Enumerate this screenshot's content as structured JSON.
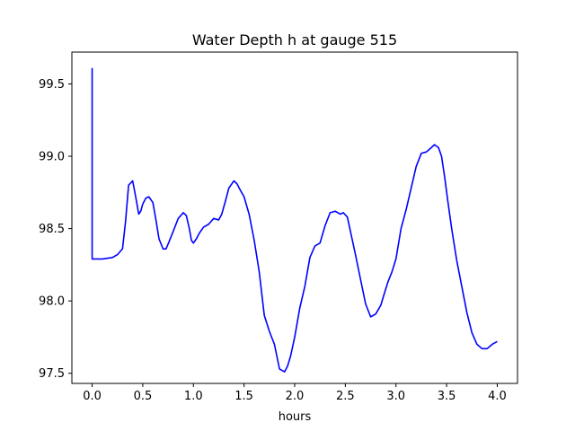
{
  "chart_data": {
    "type": "line",
    "title": "Water Depth h at gauge 515",
    "xlabel": "hours",
    "ylabel": "",
    "xlim": [
      -0.2,
      4.2
    ],
    "ylim": [
      97.43,
      99.72
    ],
    "xticks": [
      {
        "value": 0.0,
        "label": "0.0"
      },
      {
        "value": 0.5,
        "label": "0.5"
      },
      {
        "value": 1.0,
        "label": "1.0"
      },
      {
        "value": 1.5,
        "label": "1.5"
      },
      {
        "value": 2.0,
        "label": "2.0"
      },
      {
        "value": 2.5,
        "label": "2.5"
      },
      {
        "value": 3.0,
        "label": "3.0"
      },
      {
        "value": 3.5,
        "label": "3.5"
      },
      {
        "value": 4.0,
        "label": "4.0"
      }
    ],
    "yticks": [
      {
        "value": 97.5,
        "label": "97.5"
      },
      {
        "value": 98.0,
        "label": "98.0"
      },
      {
        "value": 98.5,
        "label": "98.5"
      },
      {
        "value": 99.0,
        "label": "99.0"
      },
      {
        "value": 99.5,
        "label": "99.5"
      }
    ],
    "grid": false,
    "series": [
      {
        "color": "#0000ff",
        "x": [
          0.0,
          0.0,
          0.0,
          0.1,
          0.2,
          0.25,
          0.3,
          0.33,
          0.36,
          0.4,
          0.43,
          0.46,
          0.48,
          0.5,
          0.53,
          0.56,
          0.6,
          0.63,
          0.66,
          0.7,
          0.73,
          0.76,
          0.8,
          0.85,
          0.9,
          0.93,
          0.96,
          0.98,
          1.0,
          1.03,
          1.06,
          1.1,
          1.15,
          1.2,
          1.25,
          1.28,
          1.32,
          1.35,
          1.4,
          1.43,
          1.46,
          1.5,
          1.55,
          1.6,
          1.65,
          1.7,
          1.75,
          1.8,
          1.85,
          1.9,
          1.93,
          1.96,
          2.0,
          2.05,
          2.1,
          2.15,
          2.2,
          2.25,
          2.3,
          2.35,
          2.4,
          2.45,
          2.48,
          2.52,
          2.56,
          2.6,
          2.65,
          2.7,
          2.75,
          2.8,
          2.85,
          2.88,
          2.92,
          2.96,
          3.0,
          3.05,
          3.1,
          3.15,
          3.2,
          3.25,
          3.3,
          3.35,
          3.38,
          3.42,
          3.45,
          3.48,
          3.51,
          3.55,
          3.6,
          3.65,
          3.7,
          3.75,
          3.8,
          3.85,
          3.9,
          3.95,
          4.0
        ],
        "y": [
          99.61,
          98.8,
          98.29,
          98.29,
          98.3,
          98.32,
          98.36,
          98.55,
          98.8,
          98.83,
          98.72,
          98.6,
          98.62,
          98.67,
          98.71,
          98.72,
          98.68,
          98.56,
          98.43,
          98.36,
          98.36,
          98.41,
          98.48,
          98.57,
          98.61,
          98.59,
          98.5,
          98.42,
          98.4,
          98.43,
          98.47,
          98.51,
          98.53,
          98.57,
          98.56,
          98.6,
          98.7,
          98.78,
          98.83,
          98.81,
          98.77,
          98.72,
          98.6,
          98.42,
          98.2,
          97.9,
          97.79,
          97.7,
          97.53,
          97.51,
          97.55,
          97.62,
          97.75,
          97.95,
          98.1,
          98.3,
          98.38,
          98.4,
          98.52,
          98.61,
          98.62,
          98.6,
          98.61,
          98.58,
          98.45,
          98.32,
          98.15,
          97.98,
          97.89,
          97.91,
          97.97,
          98.04,
          98.13,
          98.2,
          98.29,
          98.5,
          98.63,
          98.78,
          98.93,
          99.02,
          99.03,
          99.06,
          99.08,
          99.06,
          99.0,
          98.86,
          98.7,
          98.5,
          98.28,
          98.1,
          97.92,
          97.78,
          97.7,
          97.67,
          97.67,
          97.7,
          97.72
        ]
      }
    ]
  }
}
